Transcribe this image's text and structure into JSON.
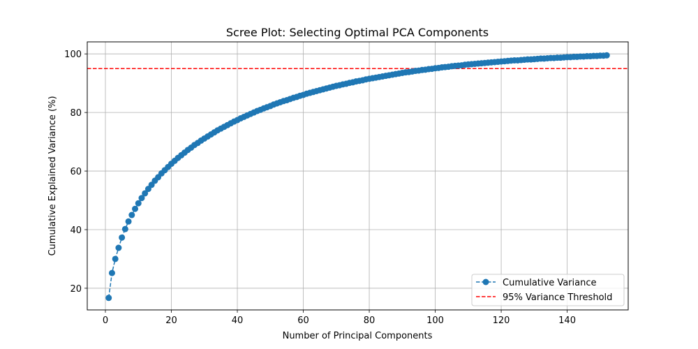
{
  "chart_data": {
    "type": "line",
    "title": "Scree Plot: Selecting Optimal PCA Components",
    "xlabel": "Number of Principal Components",
    "ylabel": "Cumulative Explained Variance (%)",
    "xlim": [
      -5.5,
      158.5
    ],
    "ylim": [
      12.6,
      104.1
    ],
    "xticks": [
      0,
      20,
      40,
      60,
      80,
      100,
      120,
      140
    ],
    "yticks": [
      20,
      40,
      60,
      80,
      100
    ],
    "grid": true,
    "legend_position": "lower-right",
    "series": [
      {
        "name": "Cumulative Variance",
        "color": "#1f77b4",
        "marker": "circle",
        "linestyle": "dashed",
        "x": [
          1,
          2,
          3,
          4,
          5,
          6,
          7,
          8,
          9,
          10,
          11,
          12,
          13,
          14,
          15,
          16,
          17,
          18,
          19,
          20,
          21,
          22,
          23,
          24,
          25,
          26,
          27,
          28,
          29,
          30,
          31,
          32,
          33,
          34,
          35,
          36,
          37,
          38,
          39,
          40,
          41,
          42,
          43,
          44,
          45,
          46,
          47,
          48,
          49,
          50,
          51,
          52,
          53,
          54,
          55,
          56,
          57,
          58,
          59,
          60,
          61,
          62,
          63,
          64,
          65,
          66,
          67,
          68,
          69,
          70,
          71,
          72,
          73,
          74,
          75,
          76,
          77,
          78,
          79,
          80,
          81,
          82,
          83,
          84,
          85,
          86,
          87,
          88,
          89,
          90,
          91,
          92,
          93,
          94,
          95,
          96,
          97,
          98,
          99,
          100,
          101,
          102,
          103,
          104,
          105,
          106,
          107,
          108,
          109,
          110,
          111,
          112,
          113,
          114,
          115,
          116,
          117,
          118,
          119,
          120,
          121,
          122,
          123,
          124,
          125,
          126,
          127,
          128,
          129,
          130,
          131,
          132,
          133,
          134,
          135,
          136,
          137,
          138,
          139,
          140,
          141,
          142,
          143,
          144,
          145,
          146,
          147,
          148,
          149,
          150,
          151,
          152
        ],
        "y": [
          16.7,
          25.2,
          30.0,
          33.8,
          37.3,
          40.2,
          42.8,
          45.0,
          47.1,
          49.0,
          50.8,
          52.4,
          53.9,
          55.3,
          56.7,
          57.9,
          59.2,
          60.3,
          61.4,
          62.5,
          63.5,
          64.5,
          65.4,
          66.3,
          67.2,
          68.0,
          68.9,
          69.6,
          70.4,
          71.1,
          71.8,
          72.5,
          73.2,
          73.9,
          74.5,
          75.1,
          75.7,
          76.3,
          76.9,
          77.4,
          78.0,
          78.5,
          79.0,
          79.5,
          80.0,
          80.5,
          80.9,
          81.4,
          81.8,
          82.2,
          82.7,
          83.1,
          83.5,
          83.9,
          84.2,
          84.6,
          85.0,
          85.3,
          85.7,
          86.0,
          86.4,
          86.7,
          87.0,
          87.3,
          87.6,
          87.9,
          88.2,
          88.5,
          88.8,
          89.1,
          89.3,
          89.6,
          89.8,
          90.1,
          90.3,
          90.6,
          90.8,
          91.0,
          91.3,
          91.5,
          91.7,
          91.9,
          92.1,
          92.3,
          92.5,
          92.7,
          92.9,
          93.1,
          93.3,
          93.5,
          93.7,
          93.8,
          94.0,
          94.2,
          94.3,
          94.5,
          94.6,
          94.8,
          94.9,
          95.1,
          95.2,
          95.4,
          95.5,
          95.6,
          95.8,
          95.9,
          96.0,
          96.1,
          96.3,
          96.4,
          96.5,
          96.6,
          96.7,
          96.8,
          96.9,
          97.0,
          97.1,
          97.2,
          97.3,
          97.4,
          97.5,
          97.6,
          97.7,
          97.8,
          97.8,
          97.9,
          98.0,
          98.1,
          98.1,
          98.2,
          98.3,
          98.4,
          98.4,
          98.5,
          98.6,
          98.6,
          98.7,
          98.7,
          98.8,
          98.9,
          98.9,
          99.0,
          99.0,
          99.1,
          99.1,
          99.2,
          99.2,
          99.3,
          99.3,
          99.4,
          99.4,
          99.5
        ]
      }
    ],
    "reference_lines": [
      {
        "name": "95% Variance Threshold",
        "orientation": "horizontal",
        "y": 95,
        "color": "#ff0000",
        "linestyle": "dashed"
      }
    ]
  }
}
